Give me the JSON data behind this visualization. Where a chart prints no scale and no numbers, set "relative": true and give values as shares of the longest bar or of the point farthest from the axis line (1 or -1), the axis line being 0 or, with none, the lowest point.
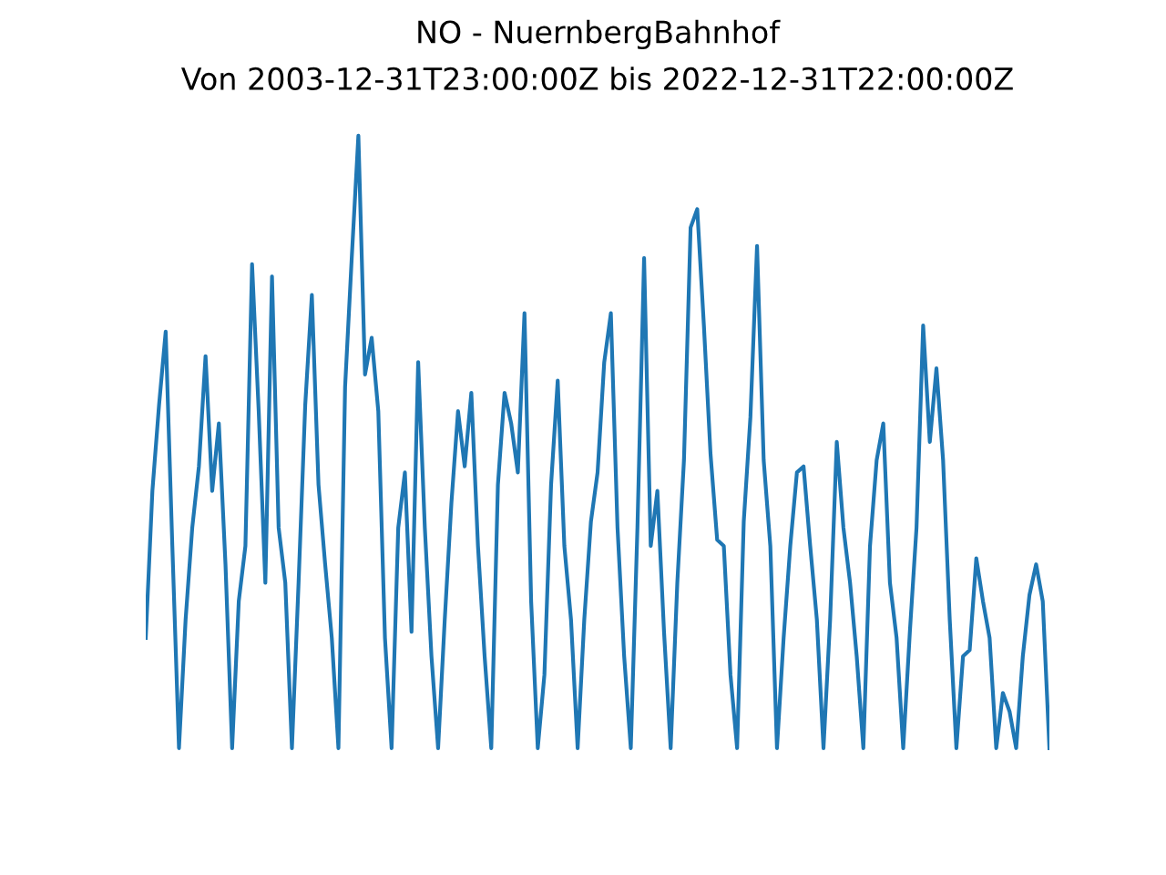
{
  "chart_data": {
    "type": "line",
    "title": "NO - NuernbergBahnhof",
    "subtitle": "Von 2003-12-31T23:00:00Z bis 2022-12-31T22:00:00Z",
    "relative": true,
    "categories": [
      null,
      null,
      null,
      null,
      null,
      null,
      null,
      null,
      null,
      null,
      null,
      null,
      null,
      null,
      null,
      null,
      null,
      null,
      null,
      null,
      null,
      null,
      null,
      null,
      null,
      null,
      null,
      null,
      null,
      null,
      null,
      null,
      null,
      null,
      null,
      null,
      null,
      null,
      null,
      null,
      null,
      null,
      null,
      null,
      null,
      null,
      null,
      null,
      null,
      null,
      null,
      null,
      null,
      null,
      null,
      null,
      null,
      null,
      null,
      null,
      null,
      null,
      null,
      null,
      null,
      null,
      null,
      null,
      null,
      null,
      null,
      null,
      null,
      null,
      null,
      null,
      null,
      null,
      null,
      null,
      null,
      null,
      null,
      null,
      null,
      null,
      null,
      null,
      null,
      null,
      null,
      null,
      null,
      null,
      null,
      null,
      null,
      null,
      null,
      null,
      null,
      null,
      null,
      null,
      null,
      null,
      null,
      null,
      null,
      null,
      null,
      null,
      null,
      null,
      null,
      null,
      null,
      null,
      null,
      null,
      null,
      null,
      null,
      null,
      null,
      null,
      null,
      null,
      null,
      null,
      null,
      null,
      null,
      null,
      null,
      null,
      null
    ],
    "series": [
      {
        "color": "#1f77b4",
        "values": [
          0.18,
          0.42,
          0.56,
          0.68,
          0.33,
          0,
          0.21,
          0.36,
          0.46,
          0.64,
          0.42,
          0.53,
          0.3,
          0,
          0.24,
          0.33,
          0.79,
          0.55,
          0.27,
          0.77,
          0.36,
          0.27,
          0,
          0.27,
          0.56,
          0.74,
          0.43,
          0.3,
          0.18,
          0,
          0.59,
          0.8,
          1,
          0.61,
          0.67,
          0.55,
          0.18,
          0,
          0.36,
          0.45,
          0.19,
          0.63,
          0.36,
          0.15,
          0,
          0.21,
          0.4,
          0.55,
          0.46,
          0.58,
          0.33,
          0.15,
          0,
          0.43,
          0.58,
          0.53,
          0.45,
          0.71,
          0.24,
          0,
          0.12,
          0.43,
          0.6,
          0.33,
          0.21,
          0,
          0.21,
          0.37,
          0.45,
          0.63,
          0.71,
          0.36,
          0.15,
          0,
          0.36,
          0.8,
          0.33,
          0.42,
          0.19,
          0,
          0.27,
          0.47,
          0.85,
          0.88,
          0.69,
          0.48,
          0.34,
          0.33,
          0.12,
          0,
          0.37,
          0.54,
          0.82,
          0.47,
          0.33,
          0,
          0.18,
          0.33,
          0.45,
          0.46,
          0.33,
          0.21,
          0,
          0.21,
          0.5,
          0.36,
          0.27,
          0.15,
          0,
          0.33,
          0.47,
          0.53,
          0.27,
          0.18,
          0,
          0.19,
          0.36,
          0.69,
          0.5,
          0.62,
          0.47,
          0.21,
          0,
          0.15,
          0.16,
          0.31,
          0.24,
          0.18,
          0,
          0.09,
          0.06,
          0,
          0.15,
          0.25,
          0.3,
          0.24,
          0
        ]
      }
    ]
  }
}
